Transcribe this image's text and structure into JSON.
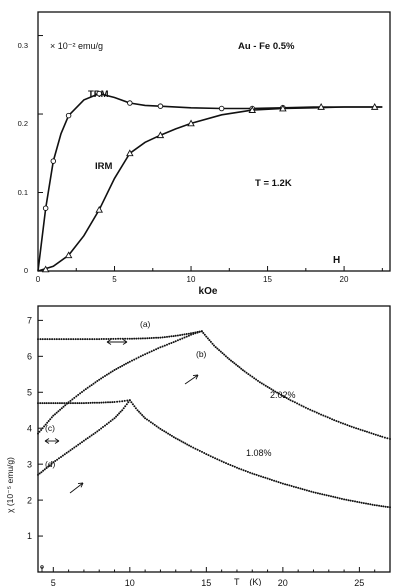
{
  "chart_data": [
    {
      "type": "line",
      "title": "",
      "xlabel": "kOe",
      "xlabel_corner": "H",
      "ylabel": "",
      "yunit_note": "× 10⁻² emu/g",
      "annotations": [
        "Au - Fe 0.5%",
        "T = 1.2K"
      ],
      "xlim": [
        0,
        23
      ],
      "ylim": [
        0,
        0.33
      ],
      "xticks": [
        "0",
        "5",
        "10",
        "15",
        "20"
      ],
      "yticks": [
        "0",
        "0.1",
        "0.2",
        "0.3"
      ],
      "series": [
        {
          "name": "TRM",
          "marker": "circle",
          "points": [
            [
              0.5,
              0.08
            ],
            [
              1.0,
              0.14
            ],
            [
              2.0,
              0.198
            ],
            [
              4.0,
              0.226
            ],
            [
              6.0,
              0.214
            ],
            [
              8.0,
              0.21
            ],
            [
              12.0,
              0.207
            ],
            [
              14.0,
              0.207
            ],
            [
              16.0,
              0.208
            ]
          ],
          "curve": [
            [
              0,
              0
            ],
            [
              0.5,
              0.08
            ],
            [
              1,
              0.14
            ],
            [
              1.5,
              0.175
            ],
            [
              2,
              0.198
            ],
            [
              3,
              0.218
            ],
            [
              4,
              0.226
            ],
            [
              5,
              0.221
            ],
            [
              6,
              0.214
            ],
            [
              7,
              0.211
            ],
            [
              8,
              0.21
            ],
            [
              10,
              0.208
            ],
            [
              12,
              0.207
            ],
            [
              14,
              0.207
            ],
            [
              16,
              0.208
            ],
            [
              18,
              0.209
            ],
            [
              20,
              0.209
            ],
            [
              22.5,
              0.209
            ]
          ]
        },
        {
          "name": "IRM",
          "marker": "triangle",
          "points": [
            [
              0.5,
              0.002
            ],
            [
              2.0,
              0.02
            ],
            [
              4.0,
              0.078
            ],
            [
              6.0,
              0.15
            ],
            [
              8.0,
              0.173
            ],
            [
              10.0,
              0.188
            ],
            [
              14.0,
              0.205
            ],
            [
              16.0,
              0.207
            ],
            [
              18.5,
              0.209
            ],
            [
              22.0,
              0.209
            ]
          ],
          "curve": [
            [
              0,
              0
            ],
            [
              1,
              0.006
            ],
            [
              2,
              0.02
            ],
            [
              3,
              0.045
            ],
            [
              4,
              0.078
            ],
            [
              5,
              0.118
            ],
            [
              6,
              0.15
            ],
            [
              7,
              0.164
            ],
            [
              8,
              0.173
            ],
            [
              9,
              0.181
            ],
            [
              10,
              0.188
            ],
            [
              12,
              0.199
            ],
            [
              14,
              0.205
            ],
            [
              16,
              0.207
            ],
            [
              18,
              0.208
            ],
            [
              20,
              0.209
            ],
            [
              22.5,
              0.209
            ]
          ]
        }
      ]
    },
    {
      "type": "scatter",
      "title": "",
      "xlabel": "T    (K)",
      "ylabel": "χ   (10⁻⁵ emu/g)",
      "xlim": [
        4,
        27
      ],
      "ylim": [
        0,
        7.4
      ],
      "xticks": [
        "5",
        "10",
        "15",
        "20",
        "25"
      ],
      "yticks": [
        "1",
        "2",
        "3",
        "4",
        "5",
        "6",
        "7"
      ],
      "curve_labels": [
        "(a)",
        "(b)",
        "(c)",
        "(d)",
        "2.02%",
        "1.08%"
      ],
      "series": [
        {
          "name": "(a)",
          "points": [
            [
              4,
              6.48
            ],
            [
              6,
              6.48
            ],
            [
              8,
              6.48
            ],
            [
              10,
              6.49
            ],
            [
              11,
              6.5
            ],
            [
              12,
              6.52
            ],
            [
              13,
              6.57
            ],
            [
              14,
              6.64
            ],
            [
              14.7,
              6.7
            ]
          ]
        },
        {
          "name": "(b)",
          "points": [
            [
              4,
              3.85
            ],
            [
              5,
              4.35
            ],
            [
              6,
              4.72
            ],
            [
              7,
              5.05
            ],
            [
              8,
              5.35
            ],
            [
              9,
              5.62
            ],
            [
              10,
              5.85
            ],
            [
              11,
              6.06
            ],
            [
              12,
              6.25
            ],
            [
              13,
              6.42
            ],
            [
              14,
              6.6
            ],
            [
              14.7,
              6.7
            ]
          ]
        },
        {
          "name": "2.02%",
          "points": [
            [
              14.7,
              6.7
            ],
            [
              15.5,
              6.3
            ],
            [
              16.5,
              5.92
            ],
            [
              17.5,
              5.58
            ],
            [
              18.5,
              5.28
            ],
            [
              19.5,
              5.02
            ],
            [
              20.5,
              4.78
            ],
            [
              21.5,
              4.57
            ],
            [
              22.5,
              4.38
            ],
            [
              23.5,
              4.2
            ],
            [
              24.5,
              4.04
            ],
            [
              25.5,
              3.9
            ],
            [
              26.5,
              3.76
            ],
            [
              27,
              3.7
            ]
          ]
        },
        {
          "name": "(c)",
          "points": [
            [
              4,
              4.7
            ],
            [
              5,
              4.7
            ],
            [
              6,
              4.7
            ],
            [
              7,
              4.7
            ],
            [
              8,
              4.71
            ],
            [
              9,
              4.73
            ],
            [
              9.5,
              4.75
            ],
            [
              10,
              4.78
            ]
          ]
        },
        {
          "name": "(d)",
          "points": [
            [
              4,
              2.7
            ],
            [
              5,
              3.05
            ],
            [
              6,
              3.35
            ],
            [
              7,
              3.65
            ],
            [
              8,
              3.95
            ],
            [
              9,
              4.28
            ],
            [
              9.5,
              4.5
            ],
            [
              10,
              4.78
            ]
          ]
        },
        {
          "name": "1.08%",
          "points": [
            [
              10,
              4.78
            ],
            [
              10.5,
              4.5
            ],
            [
              11,
              4.28
            ],
            [
              12,
              3.98
            ],
            [
              13,
              3.72
            ],
            [
              14,
              3.49
            ],
            [
              15,
              3.28
            ],
            [
              16,
              3.08
            ],
            [
              17,
              2.9
            ],
            [
              18,
              2.74
            ],
            [
              19,
              2.6
            ],
            [
              20,
              2.46
            ],
            [
              21,
              2.34
            ],
            [
              22,
              2.22
            ],
            [
              23,
              2.12
            ],
            [
              24,
              2.02
            ],
            [
              25,
              1.94
            ],
            [
              26,
              1.86
            ],
            [
              27,
              1.8
            ]
          ]
        }
      ]
    }
  ]
}
